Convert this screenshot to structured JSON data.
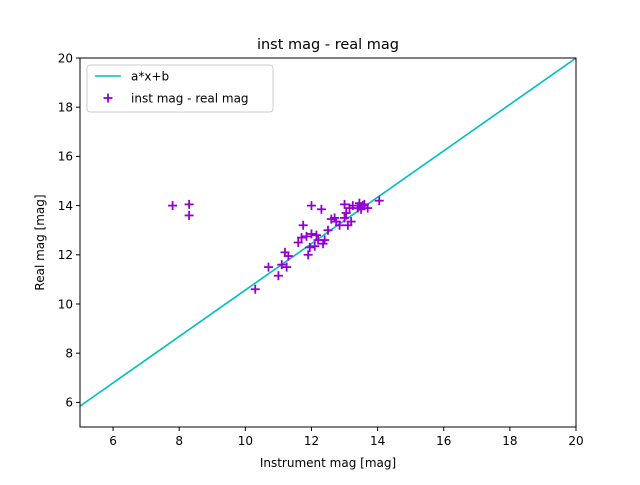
{
  "chart_data": {
    "type": "scatter",
    "title": "inst mag - real mag",
    "xlabel": "Instrument mag [mag]",
    "ylabel": "Real mag [mag]",
    "xlim": [
      5,
      20
    ],
    "ylim": [
      5,
      20
    ],
    "xticks": [
      "6",
      "8",
      "10",
      "12",
      "14",
      "16",
      "18",
      "20"
    ],
    "yticks": [
      "6",
      "8",
      "10",
      "12",
      "14",
      "16",
      "18",
      "20"
    ],
    "grid": false,
    "legend_position": "upper-left",
    "fit_line": {
      "name": "a*x+b",
      "color": "#00bfbf",
      "x": [
        5,
        20
      ],
      "y": [
        5.85,
        20.0
      ]
    },
    "series": [
      {
        "name": "inst mag - real mag",
        "marker": "plus",
        "color": "#9400d3",
        "points": [
          [
            7.8,
            14.0
          ],
          [
            8.3,
            14.05
          ],
          [
            8.3,
            13.6
          ],
          [
            10.3,
            10.6
          ],
          [
            10.7,
            11.5
          ],
          [
            11.0,
            11.15
          ],
          [
            11.1,
            11.6
          ],
          [
            11.2,
            12.1
          ],
          [
            11.25,
            11.5
          ],
          [
            11.3,
            11.95
          ],
          [
            11.6,
            12.5
          ],
          [
            11.7,
            12.7
          ],
          [
            11.75,
            13.2
          ],
          [
            11.85,
            12.75
          ],
          [
            11.9,
            12.0
          ],
          [
            11.95,
            12.3
          ],
          [
            12.0,
            12.85
          ],
          [
            12.0,
            14.0
          ],
          [
            12.1,
            12.35
          ],
          [
            12.15,
            12.8
          ],
          [
            12.2,
            12.6
          ],
          [
            12.3,
            13.85
          ],
          [
            12.35,
            12.45
          ],
          [
            12.4,
            12.6
          ],
          [
            12.5,
            13.0
          ],
          [
            12.6,
            13.45
          ],
          [
            12.7,
            13.5
          ],
          [
            12.75,
            13.35
          ],
          [
            12.85,
            13.2
          ],
          [
            13.0,
            13.5
          ],
          [
            13.0,
            14.05
          ],
          [
            13.05,
            13.7
          ],
          [
            13.1,
            13.2
          ],
          [
            13.15,
            13.9
          ],
          [
            13.2,
            13.35
          ],
          [
            13.25,
            14.0
          ],
          [
            13.4,
            13.9
          ],
          [
            13.45,
            14.1
          ],
          [
            13.5,
            13.85
          ],
          [
            13.55,
            14.0
          ],
          [
            13.6,
            14.05
          ],
          [
            13.7,
            13.9
          ],
          [
            14.05,
            14.2
          ]
        ]
      }
    ]
  }
}
